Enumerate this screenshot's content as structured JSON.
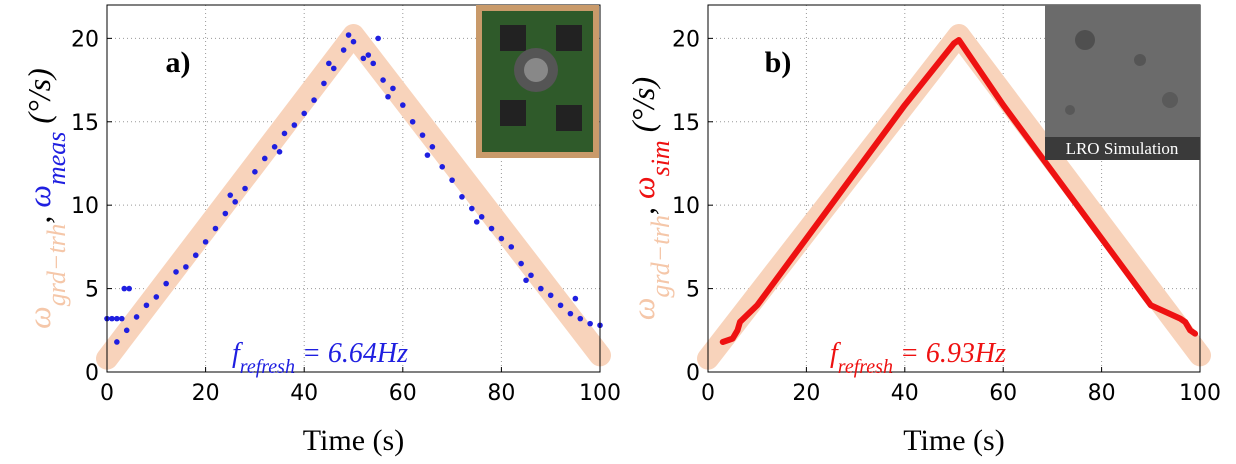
{
  "chart_data": [
    {
      "type": "scatter",
      "panel_label": "a)",
      "y_label_parts": [
        {
          "text": "ω",
          "color": "#f5c7a9"
        },
        {
          "text": "grd−trh",
          "color": "#f5c7a9",
          "subscript": true
        },
        {
          "text": ", ",
          "color": "#000000"
        },
        {
          "text": "ω",
          "color": "#1f1fe0"
        },
        {
          "text": "meas",
          "color": "#1f1fe0",
          "subscript": true
        },
        {
          "text": " (°/s)",
          "color": "#000000"
        }
      ],
      "x_label": "Time (s)",
      "annotation_parts": [
        {
          "text": "f",
          "subscript": false
        },
        {
          "text": "refresh",
          "subscript": true
        },
        {
          "text": " = 6.64Hz",
          "subscript": false
        }
      ],
      "annotation_color": "#1f1fe0",
      "xlim": [
        0,
        100
      ],
      "xticks": [
        0,
        20,
        40,
        60,
        80,
        100
      ],
      "ylim": [
        0,
        22
      ],
      "yticks": [
        0,
        5,
        10,
        15,
        20
      ],
      "grid": true,
      "series": [
        {
          "name": "ω grd−trh",
          "marker": "band",
          "color": "#f8d3bb",
          "x": [
            0,
            50,
            100
          ],
          "values": [
            0.8,
            20.2,
            1.0
          ]
        },
        {
          "name": "ω meas",
          "marker": "dot",
          "color": "#1f1fe0",
          "x": [
            0,
            1,
            2,
            3,
            3.5,
            4.5,
            2,
            4,
            6,
            8,
            10,
            12,
            14,
            16,
            18,
            20,
            22,
            24,
            26,
            28,
            30,
            32,
            34,
            36,
            38,
            40,
            42,
            44,
            46,
            48,
            49,
            50,
            52,
            54,
            55,
            56,
            58,
            60,
            62,
            64,
            66,
            68,
            70,
            72,
            74,
            76,
            78,
            80,
            82,
            84,
            86,
            88,
            90,
            92,
            94,
            96,
            98,
            100,
            25,
            35,
            45,
            53,
            57,
            65,
            75,
            85,
            95
          ],
          "values": [
            3.2,
            3.2,
            3.2,
            3.2,
            5.0,
            5.0,
            1.8,
            2.5,
            3.3,
            4.0,
            4.5,
            5.3,
            6.0,
            6.3,
            7.0,
            7.8,
            8.6,
            9.5,
            10.2,
            11.0,
            12.0,
            12.8,
            13.5,
            14.3,
            14.8,
            15.5,
            16.3,
            17.3,
            18.2,
            19.3,
            20.2,
            19.8,
            18.8,
            18.5,
            20.0,
            17.5,
            17.0,
            16.0,
            15.0,
            14.2,
            13.5,
            12.3,
            11.5,
            10.5,
            9.8,
            9.3,
            8.6,
            8.0,
            7.5,
            6.5,
            5.8,
            5.0,
            4.6,
            4.0,
            3.5,
            3.2,
            2.9,
            2.8,
            10.6,
            13.2,
            18.5,
            19.0,
            16.5,
            13.0,
            9.0,
            5.5,
            4.4
          ]
        }
      ]
    },
    {
      "type": "scatter",
      "panel_label": "b)",
      "inset_label": "LRO Simulation",
      "y_label_parts": [
        {
          "text": "ω",
          "color": "#f5c7a9"
        },
        {
          "text": "grd−trh",
          "color": "#f5c7a9",
          "subscript": true
        },
        {
          "text": ", ",
          "color": "#000000"
        },
        {
          "text": "ω",
          "color": "#ee1111"
        },
        {
          "text": "sim",
          "color": "#ee1111",
          "subscript": true
        },
        {
          "text": " (°/s)",
          "color": "#000000"
        }
      ],
      "x_label": "Time (s)",
      "annotation_parts": [
        {
          "text": "f",
          "subscript": false
        },
        {
          "text": "refresh",
          "subscript": true
        },
        {
          "text": " = 6.93Hz",
          "subscript": false
        }
      ],
      "annotation_color": "#ee1111",
      "xlim": [
        0,
        100
      ],
      "xticks": [
        0,
        20,
        40,
        60,
        80,
        100
      ],
      "ylim": [
        0,
        22
      ],
      "yticks": [
        0,
        5,
        10,
        15,
        20
      ],
      "grid": true,
      "series": [
        {
          "name": "ω grd−trh",
          "marker": "band",
          "color": "#f8d3bb",
          "x": [
            0,
            51,
            100
          ],
          "values": [
            0.8,
            20.2,
            1.0
          ]
        },
        {
          "name": "ω sim",
          "marker": "line",
          "color": "#ee1111",
          "x": [
            3,
            5,
            6,
            6.5,
            10,
            20,
            30,
            40,
            50,
            51,
            60,
            70,
            80,
            90,
            96,
            97,
            98,
            99
          ],
          "values": [
            1.8,
            2.0,
            2.5,
            3.0,
            4.0,
            8.0,
            12.0,
            16.0,
            19.7,
            19.9,
            16.0,
            12.0,
            8.0,
            4.0,
            3.2,
            3.0,
            2.5,
            2.3
          ]
        }
      ]
    }
  ]
}
